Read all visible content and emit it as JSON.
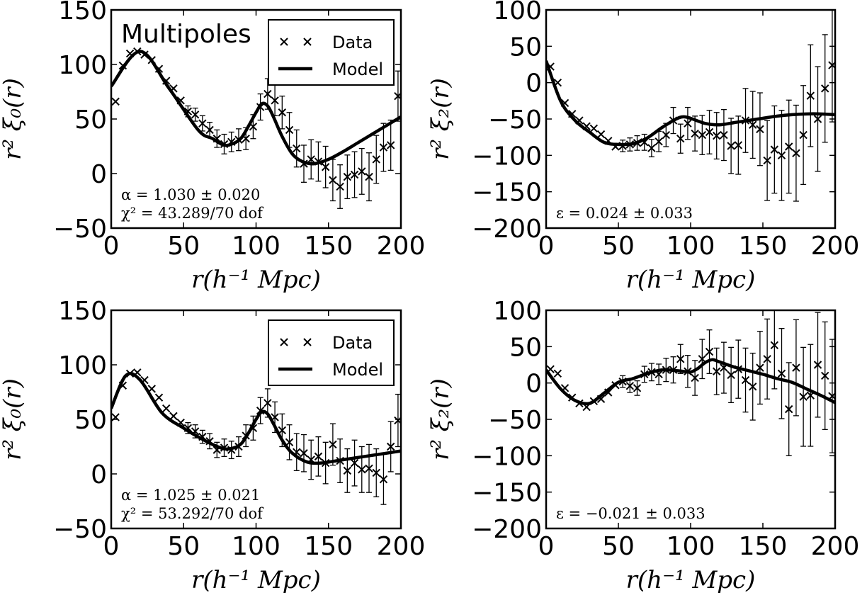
{
  "chart_data": [
    {
      "type": "scatter",
      "title": "Multipoles",
      "xlabel": "r(h⁻¹ Mpc)",
      "ylabel": "r² ξ₀(r)",
      "xlim": [
        0,
        200
      ],
      "ylim": [
        -50,
        150
      ],
      "xticks": [
        "0",
        "50",
        "100",
        "150",
        "200"
      ],
      "yticks": [
        "−50",
        "0",
        "50",
        "100",
        "150"
      ],
      "annotations": [
        "α = 1.030 ± 0.020",
        "χ² = 43.289/70 dof"
      ],
      "legend": {
        "position": "top-right",
        "entries": [
          "Data",
          "Model"
        ]
      },
      "series": [
        {
          "name": "Data",
          "kind": "points",
          "x": [
            3,
            8,
            13,
            18,
            23,
            28,
            33,
            38,
            43,
            48,
            53,
            58,
            63,
            68,
            73,
            78,
            83,
            88,
            93,
            98,
            103,
            108,
            113,
            118,
            123,
            128,
            133,
            138,
            143,
            148,
            153,
            158,
            163,
            168,
            173,
            178,
            183,
            188,
            193,
            198
          ],
          "y": [
            66,
            99,
            110,
            112,
            109,
            104,
            96,
            85,
            78,
            67,
            57,
            54,
            46,
            40,
            32,
            27,
            29,
            31,
            32,
            43,
            61,
            73,
            67,
            56,
            40,
            23,
            9,
            13,
            11,
            6,
            -6,
            -12,
            -3,
            -1,
            2,
            -3,
            13,
            24,
            26,
            71
          ],
          "err": [
            0,
            0,
            0,
            0,
            0,
            0,
            0,
            0,
            0,
            0,
            5,
            6,
            7,
            7,
            8,
            9,
            9,
            10,
            10,
            11,
            12,
            14,
            14,
            15,
            16,
            17,
            17,
            18,
            18,
            19,
            19,
            20,
            20,
            21,
            21,
            22,
            22,
            22,
            23,
            23
          ]
        },
        {
          "name": "Model",
          "kind": "line",
          "x": [
            0,
            20,
            40,
            60,
            70,
            78,
            85,
            90,
            95,
            100,
            104,
            108,
            112,
            118,
            125,
            132,
            140,
            150,
            160,
            170,
            180,
            190,
            200
          ],
          "y": [
            80,
            112,
            78,
            40,
            32,
            26,
            28,
            33,
            44,
            56,
            64,
            62,
            52,
            34,
            18,
            11,
            9,
            13,
            20,
            28,
            36,
            44,
            52
          ]
        }
      ]
    },
    {
      "type": "scatter",
      "xlabel": "r(h⁻¹ Mpc)",
      "ylabel": "r² ξ₂(r)",
      "xlim": [
        0,
        200
      ],
      "ylim": [
        -200,
        100
      ],
      "xticks": [
        "0",
        "50",
        "100",
        "150",
        "200"
      ],
      "yticks": [
        "−200",
        "−150",
        "−100",
        "−50",
        "0",
        "50",
        "100"
      ],
      "annotations": [
        "ε = 0.024 ± 0.033"
      ],
      "series": [
        {
          "name": "Data",
          "kind": "points",
          "x": [
            3,
            8,
            13,
            18,
            23,
            28,
            33,
            38,
            43,
            48,
            53,
            58,
            63,
            68,
            73,
            78,
            83,
            88,
            93,
            98,
            103,
            108,
            113,
            118,
            123,
            128,
            133,
            138,
            143,
            148,
            153,
            158,
            163,
            168,
            173,
            178,
            183,
            188,
            193,
            198
          ],
          "y": [
            22,
            0,
            -28,
            -43,
            -52,
            -60,
            -63,
            -71,
            -80,
            -88,
            -87,
            -85,
            -83,
            -82,
            -90,
            -81,
            -72,
            -52,
            -77,
            -56,
            -70,
            -72,
            -68,
            -73,
            -72,
            -87,
            -86,
            -52,
            -58,
            -64,
            -107,
            -92,
            -100,
            -88,
            -97,
            -72,
            -18,
            -50,
            -8,
            24
          ],
          "err": [
            0,
            0,
            0,
            0,
            0,
            0,
            0,
            0,
            0,
            0,
            8,
            9,
            10,
            11,
            12,
            14,
            16,
            18,
            20,
            22,
            24,
            27,
            30,
            32,
            35,
            38,
            40,
            44,
            46,
            50,
            55,
            60,
            62,
            64,
            66,
            68,
            70,
            72,
            74,
            78
          ]
        },
        {
          "name": "Model",
          "kind": "line",
          "x": [
            0,
            10,
            20,
            30,
            40,
            50,
            60,
            70,
            80,
            90,
            95,
            100,
            110,
            120,
            130,
            140,
            150,
            160,
            170,
            180,
            190,
            200
          ],
          "y": [
            30,
            -25,
            -52,
            -68,
            -82,
            -85,
            -84,
            -76,
            -62,
            -50,
            -47,
            -49,
            -56,
            -58,
            -55,
            -52,
            -49,
            -46,
            -44,
            -43,
            -43,
            -44
          ]
        }
      ]
    },
    {
      "type": "scatter",
      "xlabel": "r(h⁻¹ Mpc)",
      "ylabel": "r² ξ₀(r)",
      "xlim": [
        0,
        200
      ],
      "ylim": [
        -50,
        150
      ],
      "xticks": [
        "0",
        "50",
        "100",
        "150",
        "200"
      ],
      "yticks": [
        "−50",
        "0",
        "50",
        "100",
        "150"
      ],
      "annotations": [
        "α = 1.025 ± 0.021",
        "χ² = 53.292/70 dof"
      ],
      "legend": {
        "position": "top-right",
        "entries": [
          "Data",
          "Model"
        ]
      },
      "series": [
        {
          "name": "Data",
          "kind": "points",
          "x": [
            3,
            8,
            13,
            18,
            23,
            28,
            33,
            38,
            43,
            48,
            53,
            58,
            63,
            68,
            73,
            78,
            83,
            88,
            93,
            98,
            103,
            108,
            113,
            118,
            123,
            128,
            133,
            138,
            143,
            148,
            153,
            158,
            163,
            168,
            173,
            178,
            183,
            188,
            193,
            198
          ],
          "y": [
            52,
            81,
            92,
            93,
            86,
            78,
            70,
            60,
            53,
            47,
            42,
            39,
            34,
            30,
            22,
            24,
            22,
            25,
            35,
            42,
            58,
            65,
            52,
            40,
            29,
            20,
            19,
            13,
            16,
            10,
            27,
            12,
            3,
            10,
            4,
            5,
            1,
            -5,
            25,
            49
          ],
          "err": [
            0,
            0,
            0,
            0,
            0,
            0,
            0,
            0,
            0,
            0,
            5,
            6,
            6,
            7,
            7,
            8,
            8,
            9,
            10,
            11,
            12,
            13,
            14,
            15,
            16,
            17,
            17,
            18,
            18,
            19,
            19,
            20,
            20,
            21,
            21,
            22,
            22,
            23,
            23,
            24
          ]
        },
        {
          "name": "Model",
          "kind": "line",
          "x": [
            0,
            10,
            20,
            35,
            50,
            60,
            70,
            78,
            85,
            90,
            95,
            100,
            104,
            108,
            112,
            118,
            125,
            135,
            145,
            160,
            180,
            200
          ],
          "y": [
            60,
            90,
            86,
            56,
            42,
            34,
            27,
            23,
            24,
            28,
            38,
            50,
            57,
            55,
            46,
            31,
            19,
            11,
            10,
            13,
            17,
            21
          ]
        }
      ]
    },
    {
      "type": "scatter",
      "xlabel": "r(h⁻¹ Mpc)",
      "ylabel": "r² ξ₂(r)",
      "xlim": [
        0,
        200
      ],
      "ylim": [
        -200,
        100
      ],
      "xticks": [
        "0",
        "50",
        "100",
        "150",
        "200"
      ],
      "yticks": [
        "−200",
        "−150",
        "−100",
        "−50",
        "0",
        "50",
        "100"
      ],
      "annotations": [
        "ε = −0.021 ± 0.033"
      ],
      "series": [
        {
          "name": "Data",
          "kind": "points",
          "x": [
            3,
            8,
            13,
            18,
            23,
            28,
            33,
            38,
            43,
            48,
            53,
            58,
            63,
            68,
            73,
            78,
            83,
            88,
            93,
            98,
            103,
            108,
            113,
            118,
            123,
            128,
            133,
            138,
            143,
            148,
            153,
            158,
            163,
            168,
            173,
            178,
            183,
            188,
            193,
            198
          ],
          "y": [
            19,
            13,
            -7,
            -20,
            -28,
            -33,
            -25,
            -22,
            -13,
            -3,
            2,
            -4,
            -7,
            12,
            15,
            12,
            18,
            18,
            33,
            16,
            7,
            33,
            43,
            16,
            21,
            11,
            19,
            4,
            -5,
            21,
            33,
            52,
            13,
            -36,
            21,
            -19,
            -17,
            25,
            10,
            -18
          ],
          "err": [
            0,
            0,
            0,
            0,
            0,
            0,
            0,
            0,
            0,
            0,
            8,
            9,
            10,
            11,
            12,
            14,
            16,
            18,
            20,
            22,
            24,
            27,
            30,
            32,
            35,
            38,
            40,
            44,
            46,
            50,
            55,
            60,
            62,
            64,
            66,
            68,
            70,
            72,
            74,
            78
          ]
        },
        {
          "name": "Model",
          "kind": "line",
          "x": [
            0,
            10,
            20,
            30,
            40,
            50,
            60,
            70,
            80,
            90,
            95,
            100,
            105,
            110,
            115,
            120,
            130,
            140,
            150,
            160,
            170,
            180,
            190,
            200
          ],
          "y": [
            18,
            -8,
            -24,
            -28,
            -14,
            1,
            6,
            13,
            18,
            17,
            16,
            15,
            20,
            28,
            32,
            29,
            22,
            17,
            12,
            6,
            1,
            -8,
            -17,
            -27
          ]
        }
      ]
    }
  ]
}
